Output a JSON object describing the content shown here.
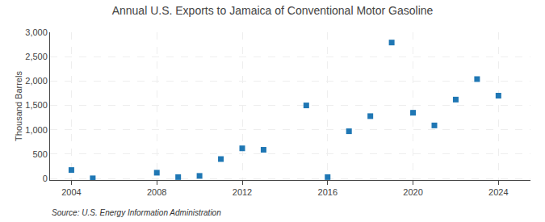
{
  "chart_data": {
    "type": "scatter",
    "title": "Annual U.S. Exports to Jamaica of Conventional Motor Gasoline",
    "ylabel": "Thousand Barrels",
    "annotations": [
      "Source: U.S. Energy Information Administration"
    ],
    "x": [
      2004,
      2005,
      2008,
      2009,
      2010,
      2011,
      2012,
      2013,
      2015,
      2016,
      2017,
      2018,
      2019,
      2020,
      2021,
      2022,
      2023,
      2024
    ],
    "values": [
      175,
      5,
      120,
      30,
      55,
      400,
      620,
      590,
      1500,
      30,
      970,
      1280,
      2790,
      1350,
      1090,
      1620,
      2040,
      1700
    ],
    "marker": "square",
    "xlim": [
      2003.0,
      2025.5
    ],
    "xticks": [
      2004,
      2008,
      2012,
      2016,
      2020,
      2024
    ],
    "ylim": [
      -30,
      3000
    ],
    "yticks": [
      0,
      500,
      {
        "value": 1000,
        "label": "1,000"
      },
      {
        "value": 1500,
        "label": "1,500"
      },
      {
        "value": 2000,
        "label": "2,000"
      },
      {
        "value": 2500,
        "label": "2,500"
      },
      {
        "value": 3000,
        "label": "3,000"
      }
    ],
    "grid": true
  }
}
